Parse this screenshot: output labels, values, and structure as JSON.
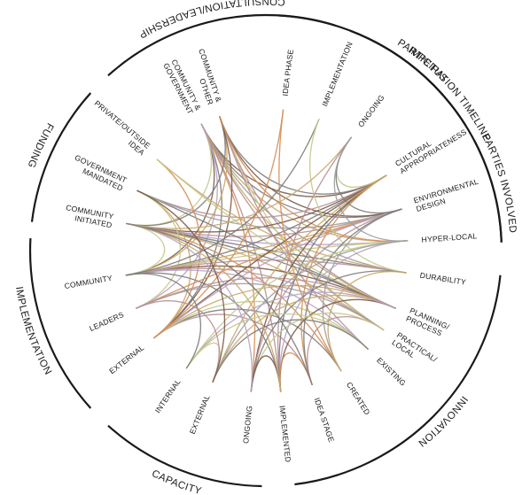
{
  "categories": [
    {
      "id": "participation",
      "label": "PARTICIPATION TIMELINE"
    },
    {
      "id": "innovation",
      "label": "INNOVATION"
    },
    {
      "id": "capacity",
      "label": "CAPACITY"
    },
    {
      "id": "implementation",
      "label": "IMPLEMENTATION"
    },
    {
      "id": "funding",
      "label": "FUNDING"
    },
    {
      "id": "consultation",
      "label": "CONSULTATION/LEADERSHIP"
    },
    {
      "id": "impetus",
      "label": "IMPETUS"
    },
    {
      "id": "parties",
      "label": "PARTIES INVOLVED"
    }
  ],
  "nodes": [
    {
      "id": "idea-phase",
      "lines": [
        "IDEA PHASE"
      ]
    },
    {
      "id": "implementation-pt",
      "lines": [
        "IMPLEMENTATION"
      ]
    },
    {
      "id": "ongoing-pt",
      "lines": [
        "ONGOING"
      ]
    },
    {
      "id": "cultural",
      "lines": [
        "CULTURAL",
        "APPROPRIATENESS"
      ]
    },
    {
      "id": "environmental",
      "lines": [
        "ENVIRONMENTAL",
        "DESIGN"
      ]
    },
    {
      "id": "hyper-local",
      "lines": [
        "HYPER-LOCAL"
      ]
    },
    {
      "id": "durability",
      "lines": [
        "DURABILITY"
      ]
    },
    {
      "id": "planning",
      "lines": [
        "PLANNING/",
        "PROCESS"
      ]
    },
    {
      "id": "practical",
      "lines": [
        "PRACTICAL/",
        "LOCAL"
      ]
    },
    {
      "id": "existing",
      "lines": [
        "EXISTING"
      ]
    },
    {
      "id": "created",
      "lines": [
        "CREATED"
      ]
    },
    {
      "id": "idea-stage",
      "lines": [
        "IDEA STAGE"
      ]
    },
    {
      "id": "implemented",
      "lines": [
        "IMPLEMENTED"
      ]
    },
    {
      "id": "ongoing-impl",
      "lines": [
        "ONGOING"
      ]
    },
    {
      "id": "external-fund",
      "lines": [
        "EXTERNAL"
      ]
    },
    {
      "id": "internal-fund",
      "lines": [
        "INTERNAL"
      ]
    },
    {
      "id": "external-cons",
      "lines": [
        "EXTERNAL"
      ]
    },
    {
      "id": "leaders",
      "lines": [
        "LEADERS"
      ]
    },
    {
      "id": "community-cons",
      "lines": [
        "COMMUNITY"
      ]
    },
    {
      "id": "community-initiated",
      "lines": [
        "COMMUNITY",
        "INITIATED"
      ]
    },
    {
      "id": "government-mandated",
      "lines": [
        "GOVERNMENT",
        "MANDATED"
      ]
    },
    {
      "id": "private-outside",
      "lines": [
        "PRIVATE/OUTSIDE",
        "IDEA"
      ]
    },
    {
      "id": "community-government",
      "lines": [
        "COMMUNITY &",
        "GOVERNMENT"
      ]
    },
    {
      "id": "community-other",
      "lines": [
        "COMMUNITY &",
        "OTHER"
      ]
    }
  ],
  "colors": {
    "ring": "#1a1a1a",
    "links": [
      "#7d5a45",
      "#c9a96b",
      "#b98f93",
      "#7c7c7c",
      "#c7c98a",
      "#d49057",
      "#b7a3c7",
      "#9e9e9e"
    ]
  },
  "links": [
    [
      "community-government",
      "cultural",
      0
    ],
    [
      "community-government",
      "environmental",
      3
    ],
    [
      "community-government",
      "planning",
      1
    ],
    [
      "community-government",
      "practical",
      2
    ],
    [
      "community-government",
      "community-cons",
      0
    ],
    [
      "community-government",
      "community-initiated",
      4
    ],
    [
      "community-government",
      "external-cons",
      3
    ],
    [
      "community-government",
      "implemented",
      2
    ],
    [
      "community-government",
      "hyper-local",
      1
    ],
    [
      "community-government",
      "durability",
      7
    ],
    [
      "community-government",
      "ongoing-impl",
      5
    ],
    [
      "community-government",
      "leaders",
      6
    ],
    [
      "community-other",
      "cultural",
      3
    ],
    [
      "community-other",
      "environmental",
      0
    ],
    [
      "community-other",
      "planning",
      2
    ],
    [
      "community-other",
      "community-cons",
      1
    ],
    [
      "community-other",
      "community-initiated",
      3
    ],
    [
      "community-other",
      "practical",
      4
    ],
    [
      "community-other",
      "existing",
      2
    ],
    [
      "community-other",
      "external-cons",
      0
    ],
    [
      "community-other",
      "hyper-local",
      5
    ],
    [
      "community-initiated",
      "cultural",
      0
    ],
    [
      "community-initiated",
      "environmental",
      2
    ],
    [
      "community-initiated",
      "planning",
      3
    ],
    [
      "community-initiated",
      "practical",
      1
    ],
    [
      "community-initiated",
      "community-cons",
      4
    ],
    [
      "community-initiated",
      "created",
      5
    ],
    [
      "community-initiated",
      "hyper-local",
      6
    ],
    [
      "community-initiated",
      "durability",
      3
    ],
    [
      "government-mandated",
      "external-cons",
      1
    ],
    [
      "government-mandated",
      "cultural",
      2
    ],
    [
      "government-mandated",
      "planning",
      3
    ],
    [
      "government-mandated",
      "leaders",
      4
    ],
    [
      "government-mandated",
      "environmental",
      7
    ],
    [
      "private-outside",
      "external-cons",
      5
    ],
    [
      "private-outside",
      "durability",
      1
    ],
    [
      "private-outside",
      "planning",
      4
    ],
    [
      "community-cons",
      "cultural",
      3
    ],
    [
      "community-cons",
      "environmental",
      1
    ],
    [
      "community-cons",
      "planning",
      0
    ],
    [
      "community-cons",
      "practical",
      2
    ],
    [
      "community-cons",
      "existing",
      6
    ],
    [
      "community-cons",
      "hyper-local",
      4
    ],
    [
      "community-cons",
      "implemented",
      3
    ],
    [
      "community-cons",
      "durability",
      2
    ],
    [
      "leaders",
      "environmental",
      5
    ],
    [
      "leaders",
      "planning",
      2
    ],
    [
      "leaders",
      "practical",
      7
    ],
    [
      "external-cons",
      "cultural",
      0
    ],
    [
      "external-cons",
      "planning",
      1
    ],
    [
      "external-cons",
      "created",
      3
    ],
    [
      "external-cons",
      "idea-stage",
      2
    ],
    [
      "external-cons",
      "existing",
      4
    ],
    [
      "external-cons",
      "environmental",
      6
    ],
    [
      "idea-phase",
      "external-cons",
      5
    ],
    [
      "idea-phase",
      "created",
      5
    ],
    [
      "implementation-pt",
      "community-cons",
      3
    ],
    [
      "implementation-pt",
      "durability",
      4
    ],
    [
      "ongoing-pt",
      "cultural",
      4
    ],
    [
      "ongoing-pt",
      "environmental",
      3
    ],
    [
      "ongoing-pt",
      "community-initiated",
      1
    ],
    [
      "ongoing-pt",
      "implemented",
      2
    ],
    [
      "ongoing-pt",
      "hyper-local",
      7
    ],
    [
      "cultural",
      "implemented",
      3
    ],
    [
      "cultural",
      "ongoing-impl",
      0
    ],
    [
      "cultural",
      "idea-stage",
      5
    ],
    [
      "cultural",
      "external-fund",
      1
    ],
    [
      "environmental",
      "ongoing-impl",
      2
    ],
    [
      "environmental",
      "created",
      7
    ],
    [
      "environmental",
      "idea-stage",
      3
    ],
    [
      "hyper-local",
      "implemented",
      6
    ],
    [
      "hyper-local",
      "internal-fund",
      4
    ],
    [
      "hyper-local",
      "external-fund",
      7
    ],
    [
      "durability",
      "ongoing-impl",
      3
    ],
    [
      "durability",
      "created",
      1
    ],
    [
      "planning",
      "external-fund",
      1
    ],
    [
      "planning",
      "implemented",
      0
    ],
    [
      "planning",
      "internal-fund",
      6
    ],
    [
      "practical",
      "idea-stage",
      2
    ],
    [
      "practical",
      "ongoing-impl",
      4
    ],
    [
      "existing",
      "internal-fund",
      4
    ],
    [
      "existing",
      "external-fund",
      3
    ],
    [
      "implemented",
      "ongoing-impl",
      0
    ],
    [
      "idea-stage",
      "implemented",
      5
    ],
    [
      "internal-fund",
      "external-fund",
      4
    ],
    [
      "internal-fund",
      "community-cons",
      3
    ],
    [
      "external-fund",
      "leaders",
      2
    ],
    [
      "ongoing-impl",
      "community-initiated",
      6
    ],
    [
      "implemented",
      "community-initiated",
      1
    ],
    [
      "idea-stage",
      "community-initiated",
      3
    ],
    [
      "external-fund",
      "government-mandated",
      0
    ]
  ]
}
